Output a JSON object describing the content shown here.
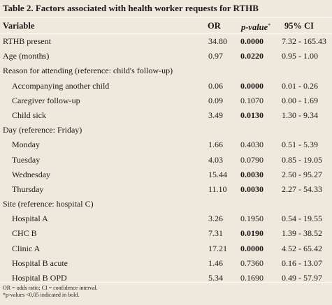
{
  "title": "Table 2. Factors associated with health worker requests for RTHB",
  "headers": {
    "variable": "Variable",
    "or": "OR",
    "p": "p-value",
    "p_mark": "*",
    "ci": "95% CI"
  },
  "rows": [
    {
      "label": "RTHB present",
      "or": "34.80",
      "p": "0.0000",
      "ci": "7.32 - 165.43",
      "bold_p": true,
      "indent": false
    },
    {
      "label": "Age (months)",
      "or": "0.97",
      "p": "0.0220",
      "ci": "0.95 - 1.00",
      "bold_p": true,
      "indent": false
    },
    {
      "label": "Reason for attending (reference: child's follow-up)",
      "or": "",
      "p": "",
      "ci": "",
      "bold_p": false,
      "indent": false
    },
    {
      "label": "Accompanying another child",
      "or": "0.06",
      "p": "0.0000",
      "ci": "0.01 - 0.26",
      "bold_p": true,
      "indent": true
    },
    {
      "label": "Caregiver follow-up",
      "or": "0.09",
      "p": "0.1070",
      "ci": "0.00 - 1.69",
      "bold_p": false,
      "indent": true
    },
    {
      "label": "Child sick",
      "or": "3.49",
      "p": "0.0130",
      "ci": "1.30 - 9.34",
      "bold_p": true,
      "indent": true
    },
    {
      "label": "Day (reference: Friday)",
      "or": "",
      "p": "",
      "ci": "",
      "bold_p": false,
      "indent": false
    },
    {
      "label": "Monday",
      "or": "1.66",
      "p": "0.4030",
      "ci": "0.51 - 5.39",
      "bold_p": false,
      "indent": true
    },
    {
      "label": "Tuesday",
      "or": "4.03",
      "p": "0.0790",
      "ci": "0.85 - 19.05",
      "bold_p": false,
      "indent": true
    },
    {
      "label": "Wednesday",
      "or": "15.44",
      "p": "0.0030",
      "ci": "2.50 - 95.27",
      "bold_p": true,
      "indent": true
    },
    {
      "label": "Thursday",
      "or": "11.10",
      "p": "0.0030",
      "ci": "2.27 - 54.33",
      "bold_p": true,
      "indent": true
    },
    {
      "label": "Site (reference: hospital C)",
      "or": "",
      "p": "",
      "ci": "",
      "bold_p": false,
      "indent": false
    },
    {
      "label": "Hospital A",
      "or": "3.26",
      "p": "0.1950",
      "ci": "0.54 - 19.55",
      "bold_p": false,
      "indent": true
    },
    {
      "label": "CHC B",
      "or": "7.31",
      "p": "0.0190",
      "ci": "1.39 - 38.52",
      "bold_p": true,
      "indent": true
    },
    {
      "label": "Clinic A",
      "or": "17.21",
      "p": "0.0000",
      "ci": "4.52 - 65.42",
      "bold_p": true,
      "indent": true
    },
    {
      "label": "Hospital B acute",
      "or": "1.46",
      "p": "0.7360",
      "ci": "0.16 - 13.07",
      "bold_p": false,
      "indent": true
    },
    {
      "label": "Hospital B OPD",
      "or": "5.34",
      "p": "0.1690",
      "ci": "0.49 - 57.97",
      "bold_p": false,
      "indent": true
    }
  ],
  "footnotes": [
    "OR = odds ratio; CI = confidence interval.",
    "*p-values <0.05 indicated in bold."
  ]
}
